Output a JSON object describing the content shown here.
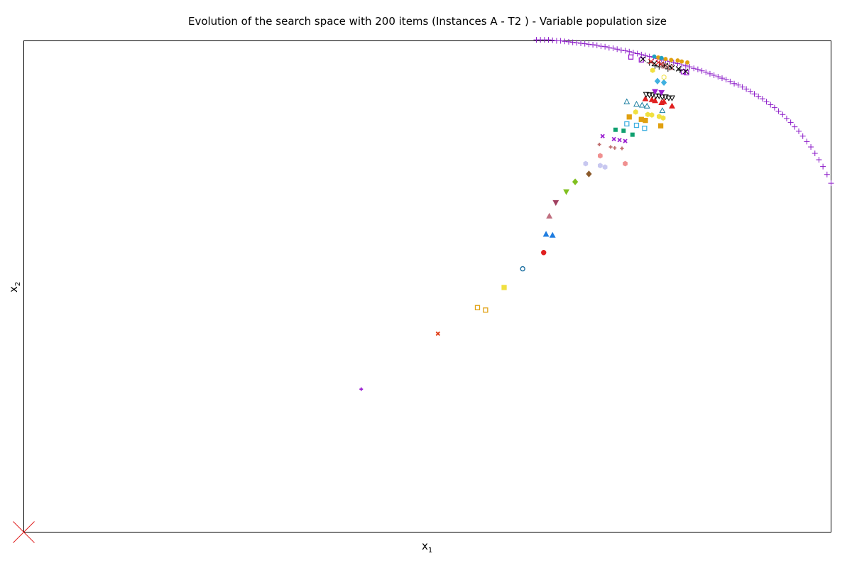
{
  "chart_data": {
    "type": "scatter",
    "title": "Evolution of the search space with 200 items (Instances A - T2 ) - Variable population size",
    "xlabel": {
      "base": "x",
      "sub": "1"
    },
    "ylabel": {
      "base": "x",
      "sub": "2"
    },
    "xlim": [
      0,
      1000
    ],
    "ylim": [
      0,
      1000
    ],
    "grid": false,
    "ticks_visible": false,
    "origin_marker": {
      "x": 0,
      "y": 0,
      "shape": "x",
      "color": "#e02020"
    },
    "pareto_front": {
      "marker": "plus",
      "color": "#8b1ac8",
      "points": [
        [
          635,
          1002
        ],
        [
          640,
          1002
        ],
        [
          645,
          1002
        ],
        [
          650,
          1002
        ],
        [
          655,
          1001
        ],
        [
          660,
          1000
        ],
        [
          665,
          1000
        ],
        [
          670,
          999
        ],
        [
          675,
          998
        ],
        [
          680,
          997
        ],
        [
          685,
          996
        ],
        [
          690,
          995
        ],
        [
          695,
          994
        ],
        [
          700,
          993
        ],
        [
          705,
          992
        ],
        [
          710,
          991
        ],
        [
          715,
          989
        ],
        [
          720,
          988
        ],
        [
          725,
          986
        ],
        [
          730,
          985
        ],
        [
          735,
          983
        ],
        [
          740,
          981
        ],
        [
          745,
          980
        ],
        [
          750,
          978
        ],
        [
          755,
          976
        ],
        [
          760,
          974
        ],
        [
          765,
          972
        ],
        [
          770,
          970
        ],
        [
          775,
          968
        ],
        [
          780,
          966
        ],
        [
          785,
          964
        ],
        [
          790,
          962
        ],
        [
          795,
          960
        ],
        [
          800,
          958
        ],
        [
          805,
          956
        ],
        [
          810,
          954
        ],
        [
          815,
          951
        ],
        [
          820,
          949
        ],
        [
          825,
          947
        ],
        [
          830,
          944
        ],
        [
          835,
          942
        ],
        [
          840,
          939
        ],
        [
          845,
          936
        ],
        [
          850,
          933
        ],
        [
          855,
          930
        ],
        [
          860,
          927
        ],
        [
          865,
          924
        ],
        [
          870,
          921
        ],
        [
          875,
          917
        ],
        [
          880,
          913
        ],
        [
          885,
          910
        ],
        [
          890,
          906
        ],
        [
          895,
          902
        ],
        [
          900,
          897
        ],
        [
          905,
          892
        ],
        [
          910,
          887
        ],
        [
          915,
          882
        ],
        [
          920,
          876
        ],
        [
          925,
          870
        ],
        [
          930,
          864
        ],
        [
          935,
          857
        ],
        [
          940,
          850
        ],
        [
          945,
          842
        ],
        [
          950,
          834
        ],
        [
          955,
          825
        ],
        [
          960,
          816
        ],
        [
          965,
          806
        ],
        [
          970,
          795
        ],
        [
          975,
          784
        ],
        [
          980,
          771
        ],
        [
          985,
          758
        ],
        [
          990,
          744
        ],
        [
          995,
          728
        ],
        [
          1000,
          710
        ]
      ]
    },
    "series": [
      {
        "marker": "plus-small",
        "color": "#9a1fd0",
        "filled": true,
        "points": [
          [
            418,
            291
          ]
        ]
      },
      {
        "marker": "x-small",
        "color": "#e03a12",
        "filled": true,
        "points": [
          [
            513,
            404
          ]
        ]
      },
      {
        "marker": "square",
        "color": "#e0a010",
        "filled": false,
        "points": [
          [
            562,
            457
          ],
          [
            572,
            452
          ]
        ]
      },
      {
        "marker": "square",
        "color": "#f0e040",
        "filled": true,
        "points": [
          [
            595,
            498
          ]
        ]
      },
      {
        "marker": "circle",
        "color": "#1a6ea0",
        "filled": false,
        "points": [
          [
            618,
            536
          ]
        ]
      },
      {
        "marker": "circle",
        "color": "#e02020",
        "filled": true,
        "points": [
          [
            644,
            569
          ]
        ]
      },
      {
        "marker": "triangle-up",
        "color": "#1f7de0",
        "filled": true,
        "points": [
          [
            647,
            606
          ],
          [
            655,
            604
          ]
        ]
      },
      {
        "marker": "triangle-up",
        "color": "#c07080",
        "filled": true,
        "points": [
          [
            651,
            643
          ]
        ]
      },
      {
        "marker": "triangle-down",
        "color": "#a04060",
        "filled": true,
        "points": [
          [
            659,
            671
          ]
        ]
      },
      {
        "marker": "triangle-down",
        "color": "#80c020",
        "filled": true,
        "points": [
          [
            672,
            693
          ]
        ]
      },
      {
        "marker": "diamond",
        "color": "#80c020",
        "filled": true,
        "points": [
          [
            683,
            713
          ]
        ]
      },
      {
        "marker": "diamond",
        "color": "#8b5a2b",
        "filled": true,
        "points": [
          [
            700,
            729
          ]
        ]
      },
      {
        "marker": "hexagon",
        "color": "#c8c8f0",
        "filled": true,
        "points": [
          [
            696,
            750
          ],
          [
            714,
            746
          ],
          [
            720,
            743
          ]
        ]
      },
      {
        "marker": "hexagon",
        "color": "#f09090",
        "filled": true,
        "points": [
          [
            714,
            766
          ],
          [
            745,
            750
          ]
        ]
      },
      {
        "marker": "plus-small",
        "color": "#c07070",
        "filled": true,
        "points": [
          [
            713,
            789
          ],
          [
            727,
            784
          ],
          [
            732,
            782
          ],
          [
            741,
            781
          ]
        ]
      },
      {
        "marker": "x-small",
        "color": "#9a1fd0",
        "filled": true,
        "points": [
          [
            717,
            806
          ],
          [
            731,
            800
          ],
          [
            738,
            798
          ],
          [
            745,
            796
          ]
        ]
      },
      {
        "marker": "square-small",
        "color": "#10a070",
        "filled": true,
        "points": [
          [
            733,
            819
          ],
          [
            743,
            817
          ],
          [
            754,
            809
          ]
        ]
      },
      {
        "marker": "square",
        "color": "#40b0e0",
        "filled": false,
        "points": [
          [
            747,
            831
          ],
          [
            759,
            828
          ],
          [
            769,
            822
          ]
        ]
      },
      {
        "marker": "square",
        "color": "#e0a010",
        "filled": true,
        "points": [
          [
            750,
            845
          ],
          [
            765,
            840
          ],
          [
            770,
            838
          ],
          [
            789,
            827
          ]
        ]
      },
      {
        "marker": "hexagon",
        "color": "#f0e040",
        "filled": true,
        "points": [
          [
            758,
            855
          ],
          [
            773,
            850
          ],
          [
            778,
            849
          ],
          [
            787,
            846
          ],
          [
            792,
            843
          ]
        ]
      },
      {
        "marker": "triangle-up",
        "color": "#1a7ea0",
        "filled": false,
        "points": [
          [
            747,
            876
          ],
          [
            759,
            871
          ],
          [
            766,
            869
          ],
          [
            772,
            867
          ],
          [
            791,
            858
          ]
        ]
      },
      {
        "marker": "triangle-up",
        "color": "#e02020",
        "filled": true,
        "points": [
          [
            770,
            882
          ],
          [
            778,
            880
          ],
          [
            782,
            878
          ],
          [
            790,
            874
          ],
          [
            793,
            876
          ],
          [
            803,
            867
          ]
        ]
      },
      {
        "marker": "triangle-down",
        "color": "#000000",
        "filled": false,
        "points": [
          [
            771,
            891
          ],
          [
            775,
            890
          ],
          [
            779,
            890
          ],
          [
            783,
            888
          ],
          [
            787,
            888
          ],
          [
            791,
            886
          ],
          [
            795,
            886
          ],
          [
            799,
            884
          ],
          [
            803,
            884
          ]
        ]
      },
      {
        "marker": "triangle-down",
        "color": "#9a1fd0",
        "filled": true,
        "points": [
          [
            782,
            897
          ],
          [
            790,
            895
          ]
        ]
      },
      {
        "marker": "diamond",
        "color": "#40b0e0",
        "filled": true,
        "points": [
          [
            785,
            918
          ],
          [
            793,
            915
          ]
        ]
      },
      {
        "marker": "hexagon",
        "color": "#f0e040",
        "filled": false,
        "points": [
          [
            793,
            926
          ]
        ]
      },
      {
        "marker": "hexagon",
        "color": "#f0e040",
        "filled": true,
        "points": [
          [
            779,
            940
          ]
        ]
      },
      {
        "marker": "circle-small",
        "color": "#e0a010",
        "filled": true,
        "points": [
          [
            786,
            966
          ],
          [
            795,
            963
          ],
          [
            802,
            961
          ],
          [
            810,
            960
          ],
          [
            815,
            958
          ],
          [
            822,
            956
          ]
        ]
      },
      {
        "marker": "circle-small",
        "color": "#20a0c0",
        "filled": true,
        "points": [
          [
            781,
            968
          ],
          [
            790,
            965
          ]
        ]
      },
      {
        "marker": "square",
        "color": "#9a1fd0",
        "filled": false,
        "points": [
          [
            752,
            967
          ],
          [
            765,
            961
          ],
          [
            817,
            937
          ],
          [
            821,
            935
          ]
        ]
      },
      {
        "marker": "x",
        "color": "#000000",
        "filled": true,
        "points": [
          [
            767,
            963
          ],
          [
            781,
            954
          ],
          [
            789,
            952
          ],
          [
            795,
            950
          ],
          [
            800,
            948
          ],
          [
            803,
            945
          ],
          [
            811,
            943
          ],
          [
            820,
            938
          ]
        ]
      },
      {
        "marker": "plus",
        "color": "#000000",
        "filled": true,
        "points": [
          [
            775,
            955
          ],
          [
            782,
            949
          ],
          [
            787,
            947
          ],
          [
            793,
            950
          ],
          [
            798,
            943
          ],
          [
            813,
            940
          ]
        ]
      },
      {
        "marker": "x",
        "color": "#e02020",
        "filled": true,
        "points": [
          [
            777,
            958
          ],
          [
            786,
            956
          ],
          [
            790,
            953
          ]
        ]
      },
      {
        "marker": "square",
        "color": "#c07070",
        "filled": false,
        "points": [
          [
            793,
            949
          ],
          [
            801,
            946
          ]
        ]
      }
    ]
  }
}
